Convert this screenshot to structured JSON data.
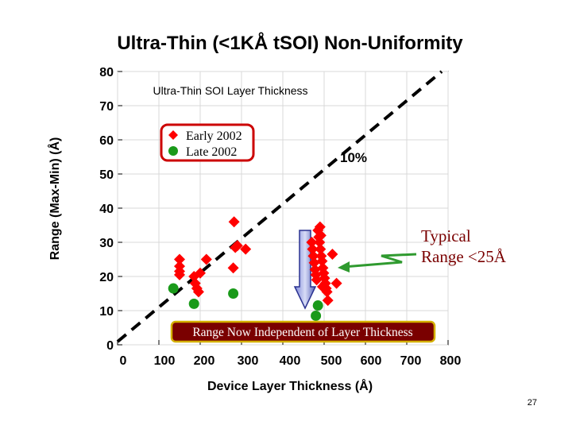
{
  "slide": {
    "title": "Ultra-Thin (<1KÅ tSOI) Non-Uniformity",
    "page_number": "27"
  },
  "chart_data": {
    "type": "scatter",
    "title": "Ultra-Thin SOI Layer Thickness",
    "xlabel": "Device Layer Thickness (Å)",
    "ylabel": "Range (Max-Min) (Å)",
    "xlim": [
      0,
      800
    ],
    "ylim": [
      0,
      80
    ],
    "x_ticks": [
      0,
      100,
      200,
      300,
      400,
      500,
      600,
      700,
      800
    ],
    "x_tick_labels": [
      "0",
      "100",
      "200",
      "300",
      "400",
      "500",
      "600",
      "700",
      "800"
    ],
    "y_ticks": [
      0,
      10,
      20,
      30,
      40,
      50,
      60,
      70,
      80
    ],
    "y_tick_labels": [
      "0",
      "10",
      "20",
      "30",
      "40",
      "50",
      "60",
      "70",
      "80"
    ],
    "grid": true,
    "legend_position": "upper-left",
    "series": [
      {
        "name": "Early 2002",
        "marker": "diamond",
        "color": "#ff0000",
        "points": [
          [
            150,
            25
          ],
          [
            150,
            23
          ],
          [
            150,
            21.5
          ],
          [
            150,
            20.5
          ],
          [
            185,
            20
          ],
          [
            188,
            18
          ],
          [
            192,
            16.5
          ],
          [
            196,
            15.5
          ],
          [
            200,
            21
          ],
          [
            215,
            25
          ],
          [
            282,
            36
          ],
          [
            285,
            28.5
          ],
          [
            290,
            29
          ],
          [
            280,
            22.5
          ],
          [
            310,
            28
          ],
          [
            470,
            30
          ],
          [
            472,
            28
          ],
          [
            474,
            26
          ],
          [
            476,
            24
          ],
          [
            478,
            22
          ],
          [
            480,
            20.5
          ],
          [
            482,
            19
          ],
          [
            485,
            33.5
          ],
          [
            487,
            31.5
          ],
          [
            489,
            30
          ],
          [
            491,
            28
          ],
          [
            493,
            26
          ],
          [
            495,
            24.5
          ],
          [
            497,
            22.5
          ],
          [
            499,
            21
          ],
          [
            501,
            19.5
          ],
          [
            503,
            18
          ],
          [
            505,
            16.5
          ],
          [
            507,
            15.5
          ],
          [
            490,
            34.5
          ],
          [
            492,
            32
          ],
          [
            496,
            17
          ],
          [
            509,
            13
          ],
          [
            520,
            26.5
          ],
          [
            530,
            18
          ]
        ]
      },
      {
        "name": "Late 2002",
        "marker": "circle",
        "color": "#1a9a1a",
        "points": [
          [
            135,
            16.5
          ],
          [
            185,
            12
          ],
          [
            280,
            15
          ],
          [
            485,
            11.5
          ],
          [
            480,
            8.5
          ]
        ]
      }
    ],
    "reference_line": {
      "label": "10%",
      "from": [
        0,
        0
      ],
      "to": [
        800,
        80
      ],
      "style": "dashed"
    },
    "annotations": {
      "typical_range": "Typical Range <25Å",
      "independent": "Range Now Independent of Layer Thickness"
    }
  }
}
